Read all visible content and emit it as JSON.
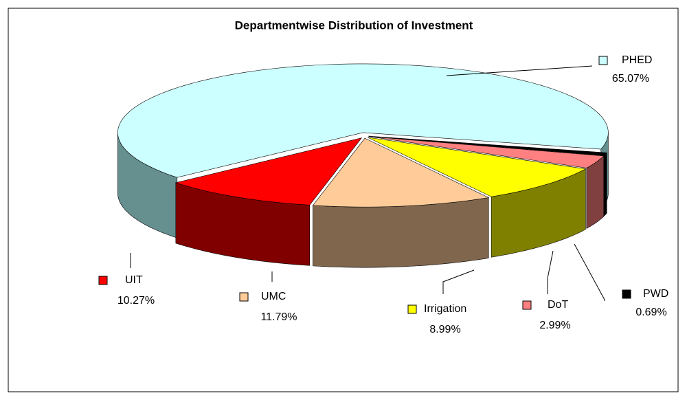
{
  "chart_data": {
    "type": "pie3d",
    "title": "Departmentwise Distribution of Investment",
    "categories": [
      "PWD",
      "DoT",
      "Irrigation",
      "UMC",
      "UIT",
      "PHED"
    ],
    "values": [
      0.69,
      2.99,
      8.99,
      11.79,
      10.27,
      65.07
    ],
    "value_labels": [
      "0.69%",
      "2.99%",
      "8.99%",
      "11.79%",
      "10.27%",
      "65.07%"
    ],
    "colors": [
      "#000000",
      "#ff8080",
      "#ffff00",
      "#ffcc99",
      "#ff0000",
      "#ccffff"
    ]
  }
}
